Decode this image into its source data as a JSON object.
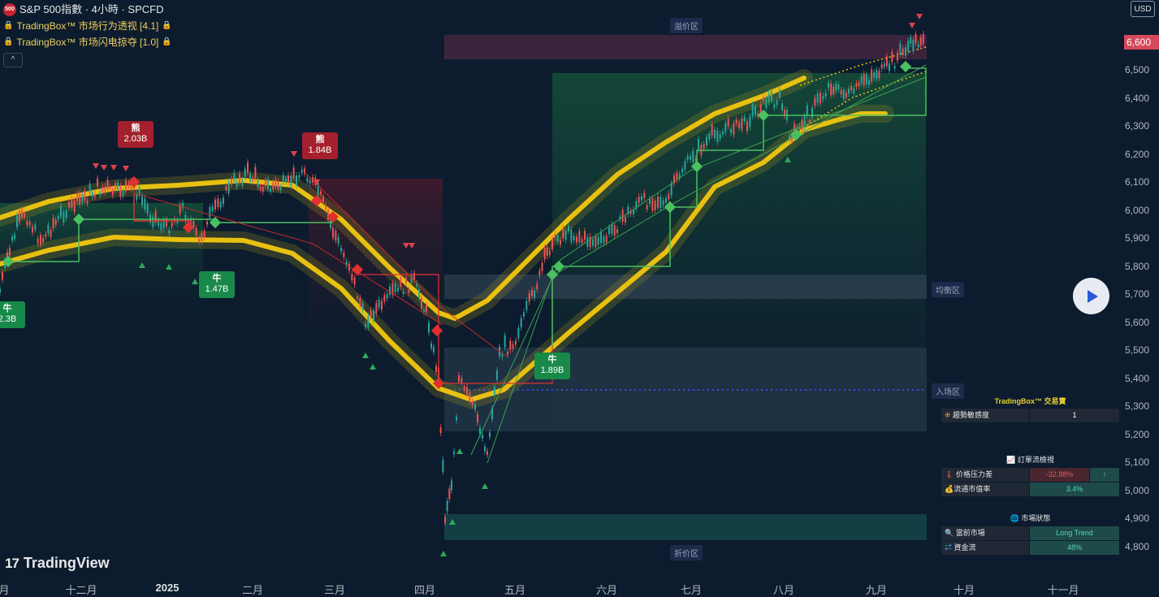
{
  "header": {
    "symbol_badge": "500",
    "title": "S&P 500指數 · 4小時 · SPCFD",
    "indicators": [
      {
        "name": "TradingBox™ 市场行为透视 [4.1]"
      },
      {
        "name": "TradingBox™ 市场闪电掠夺 [1.0]"
      }
    ],
    "collapse_glyph": "^"
  },
  "currency": "USD",
  "price_axis": {
    "labels": [
      "6,500",
      "6,400",
      "6,300",
      "6,200",
      "6,100",
      "6,000",
      "5,900",
      "5,800",
      "5,700",
      "5,600",
      "5,500",
      "5,400",
      "5,300",
      "5,200",
      "5,100",
      "5,000",
      "4,900",
      "4,800"
    ],
    "current_price": "6,600"
  },
  "time_axis": {
    "labels": [
      {
        "text": "月",
        "bold": false
      },
      {
        "text": "十二月",
        "bold": false
      },
      {
        "text": "2025",
        "bold": true
      },
      {
        "text": "二月",
        "bold": false
      },
      {
        "text": "三月",
        "bold": false
      },
      {
        "text": "四月",
        "bold": false
      },
      {
        "text": "五月",
        "bold": false
      },
      {
        "text": "六月",
        "bold": false
      },
      {
        "text": "七月",
        "bold": false
      },
      {
        "text": "八月",
        "bold": false
      },
      {
        "text": "九月",
        "bold": false
      },
      {
        "text": "十月",
        "bold": false
      },
      {
        "text": "十一月",
        "bold": false
      }
    ]
  },
  "zones": {
    "premium": "溢价区",
    "equilibrium": "均衡区",
    "entry": "入场区",
    "discount": "折价区"
  },
  "signals": [
    {
      "side": "熊",
      "volume": "2.03B"
    },
    {
      "side": "熊",
      "volume": "1.84B"
    },
    {
      "side": "牛",
      "volume": "2.3B"
    },
    {
      "side": "牛",
      "volume": "1.47B"
    },
    {
      "side": "牛",
      "volume": "1.89B"
    }
  ],
  "colors": {
    "background": "#0c1c2e",
    "bull": "#26a69a",
    "bear": "#ef5350",
    "band": "#e8c010",
    "price_tag": "#d44a5a"
  },
  "panel": {
    "brand": "TradingBox™ 交易寶",
    "trend_row": {
      "label": "趨勢敏感度",
      "value": "1"
    },
    "orderflow_title": "訂單流檢視",
    "pressure": {
      "label": "价格压力差",
      "value": "-32.88%",
      "arrow": "↑"
    },
    "mcap": {
      "label": "流通市值率",
      "value": "3.4%"
    },
    "market_title": "市場狀態",
    "current_market": {
      "label": "當前市場",
      "value": "Long Trend"
    },
    "fund_flow": {
      "label": "資金流",
      "value": "48%"
    }
  },
  "brand": {
    "logo_text": "TradingView"
  }
}
